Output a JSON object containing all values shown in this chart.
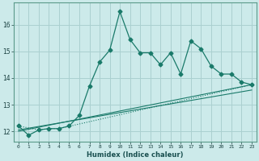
{
  "xlabel": "Humidex (Indice chaleur)",
  "background_color": "#cceaea",
  "grid_color": "#aad0d0",
  "line_color": "#1a7a6a",
  "x_min": -0.5,
  "x_max": 23.5,
  "y_min": 11.6,
  "y_max": 16.85,
  "y_ticks": [
    12,
    13,
    14,
    15,
    16
  ],
  "x_ticks": [
    0,
    1,
    2,
    3,
    4,
    5,
    6,
    7,
    8,
    9,
    10,
    11,
    12,
    13,
    14,
    15,
    16,
    17,
    18,
    19,
    20,
    21,
    22,
    23
  ],
  "series1_x": [
    0,
    1,
    2,
    3,
    4,
    5,
    6,
    7,
    8,
    9,
    10,
    11,
    12,
    13,
    14,
    15,
    16,
    17,
    18,
    19,
    20,
    21,
    22,
    23
  ],
  "series1_y": [
    12.2,
    11.85,
    12.05,
    12.1,
    12.1,
    12.2,
    12.6,
    13.7,
    14.6,
    15.05,
    16.5,
    15.45,
    14.95,
    14.95,
    14.5,
    14.95,
    14.15,
    15.4,
    15.1,
    14.45,
    14.15,
    14.15,
    13.85,
    13.75
  ],
  "series2_x": [
    0,
    2,
    3,
    4,
    23
  ],
  "series2_y": [
    12.2,
    12.05,
    12.1,
    12.1,
    13.75
  ],
  "series3_x": [
    0,
    23
  ],
  "series3_y": [
    12.05,
    13.55
  ],
  "series4_x": [
    0,
    23
  ],
  "series4_y": [
    12.0,
    13.75
  ]
}
